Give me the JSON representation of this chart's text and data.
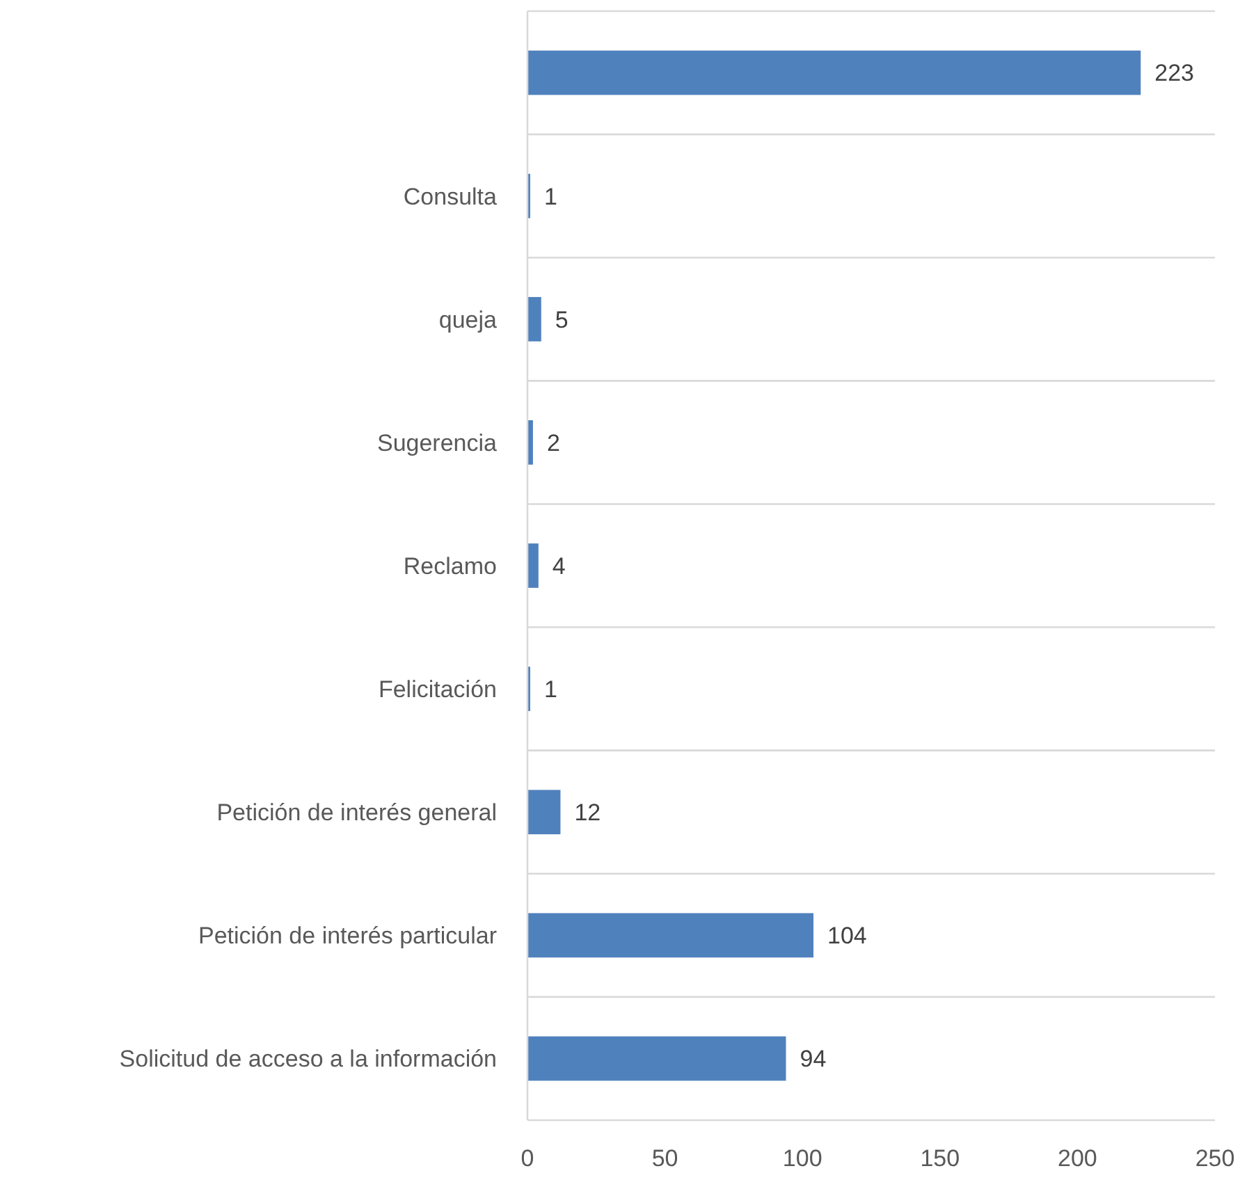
{
  "chart_data": {
    "type": "bar",
    "orientation": "horizontal",
    "categories": [
      null,
      "Consulta",
      "queja",
      "Sugerencia",
      "Reclamo",
      "Felicitación",
      "Petición de interés general",
      "Petición de interés particular",
      "Solicitud de acceso a la información"
    ],
    "values": [
      223,
      1,
      5,
      2,
      4,
      1,
      12,
      104,
      94
    ],
    "color": "#4f81bd",
    "xlim": [
      0,
      250
    ],
    "xticks": [
      0,
      50,
      100,
      150,
      200,
      250
    ],
    "grid": "y",
    "data_labels": true
  }
}
